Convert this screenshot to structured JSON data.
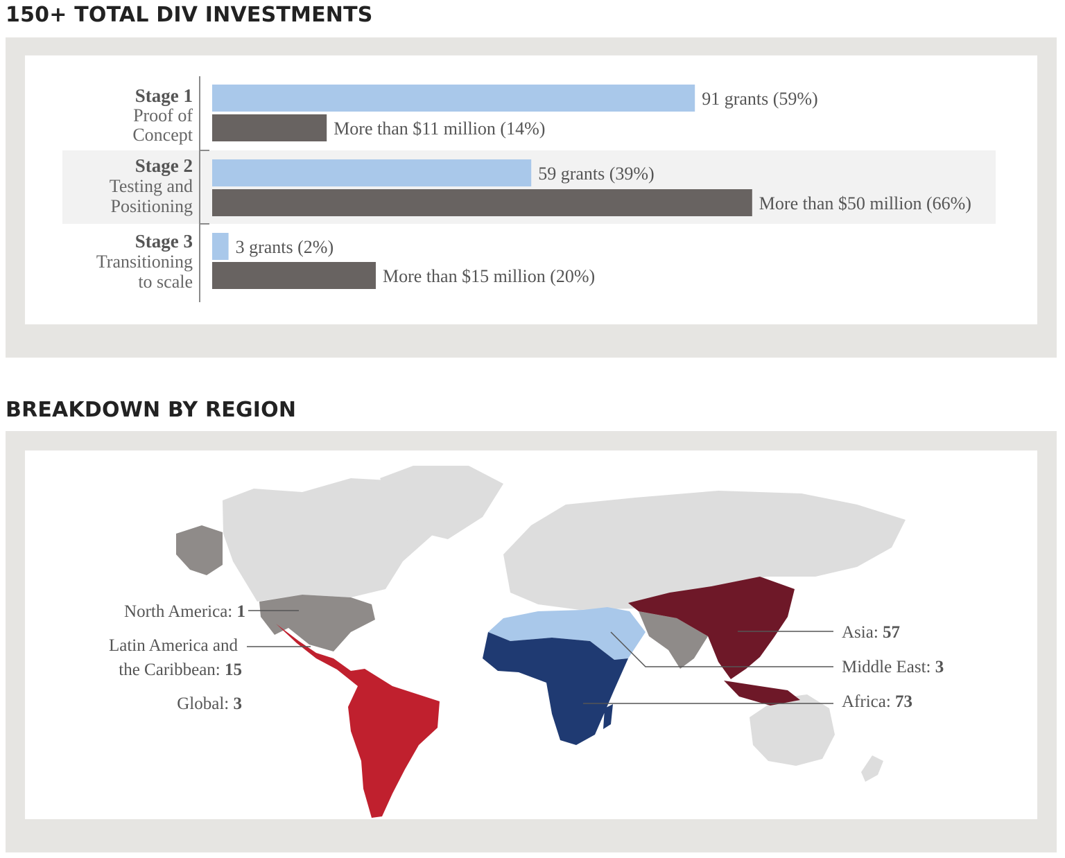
{
  "sections": {
    "investments_title": "150+ TOTAL DIV INVESTMENTS",
    "region_title": "BREAKDOWN BY REGION"
  },
  "colors": {
    "frame_bg": "#e6e5e2",
    "grants_bar": "#a9c8ea",
    "funding_bar": "#686361",
    "stage2_band": "#f2f2f2",
    "north_america": "#8f8b89",
    "latin_america": "#c0202e",
    "africa": "#1f3a72",
    "middle_east": "#a9c8ea",
    "asia": "#6e1828",
    "south_asia": "#8f8b89",
    "other_land": "#dddddd"
  },
  "chart_data": [
    {
      "type": "bar",
      "orientation": "horizontal",
      "categories": [
        {
          "stage": "Stage 1",
          "desc": [
            "Proof of",
            "Concept"
          ]
        },
        {
          "stage": "Stage 2",
          "desc": [
            "Testing and",
            "Positioning"
          ]
        },
        {
          "stage": "Stage 3",
          "desc": [
            "Transitioning",
            "to scale"
          ]
        }
      ],
      "series": [
        {
          "key": "grants",
          "values": [
            59,
            39,
            2
          ],
          "labels": [
            "91 grants (59%)",
            "59 grants (39%)",
            "3 grants (2%)"
          ]
        },
        {
          "key": "funding",
          "values": [
            14,
            66,
            20
          ],
          "labels": [
            "More than $11 million (14%)",
            "More than $50 million (66%)",
            "More than $15 million (20%)"
          ]
        }
      ],
      "xlim": [
        0,
        100
      ],
      "grid": false
    },
    {
      "type": "map",
      "regions": [
        {
          "key": "north_america",
          "label": "North America: ",
          "value": "1"
        },
        {
          "key": "latin_america",
          "label_lines": [
            "Latin America and",
            "the Caribbean: "
          ],
          "value": "15"
        },
        {
          "key": "global",
          "label": "Global: ",
          "value": "3"
        },
        {
          "key": "asia",
          "label": "Asia: ",
          "value": "57"
        },
        {
          "key": "middle_east",
          "label": "Middle East: ",
          "value": "3"
        },
        {
          "key": "africa",
          "label": "Africa: ",
          "value": "73"
        }
      ]
    }
  ]
}
